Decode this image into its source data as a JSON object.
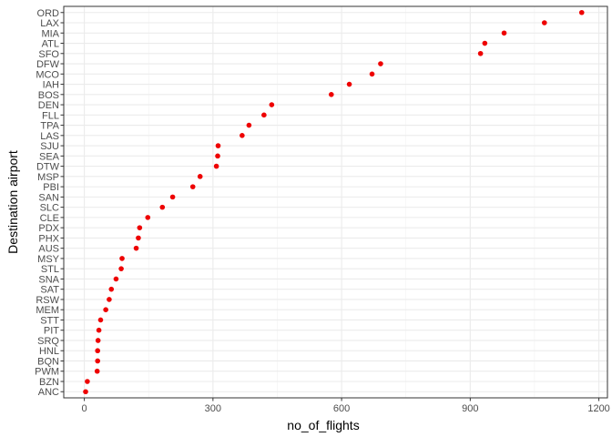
{
  "chart_data": {
    "type": "scatter",
    "title": "",
    "xlabel": "no_of_flights",
    "ylabel": "Destination airport",
    "xlim": [
      -48,
      1220
    ],
    "x_ticks": [
      0,
      300,
      600,
      900,
      1200
    ],
    "x_tick_labels": [
      "0",
      "300",
      "600",
      "900",
      "1200"
    ],
    "grid": true,
    "legend": "none",
    "point_color": "#ee0000",
    "categories": [
      "ORD",
      "LAX",
      "MIA",
      "ATL",
      "SFO",
      "DFW",
      "MCO",
      "IAH",
      "BOS",
      "DEN",
      "FLL",
      "TPA",
      "LAS",
      "SJU",
      "SEA",
      "DTW",
      "MSP",
      "PBI",
      "SAN",
      "SLC",
      "CLE",
      "PDX",
      "PHX",
      "AUS",
      "MSY",
      "STL",
      "SNA",
      "SAT",
      "RSW",
      "MEM",
      "STT",
      "PIT",
      "SRQ",
      "HNL",
      "BQN",
      "PWM",
      "BZN",
      "ANC"
    ],
    "values": [
      1160,
      1073,
      979,
      934,
      924,
      691,
      671,
      618,
      576,
      437,
      419,
      384,
      368,
      312,
      311,
      308,
      270,
      253,
      206,
      182,
      148,
      129,
      126,
      121,
      88,
      86,
      74,
      63,
      58,
      50,
      38,
      34,
      32,
      31,
      31,
      30,
      7,
      3
    ]
  }
}
